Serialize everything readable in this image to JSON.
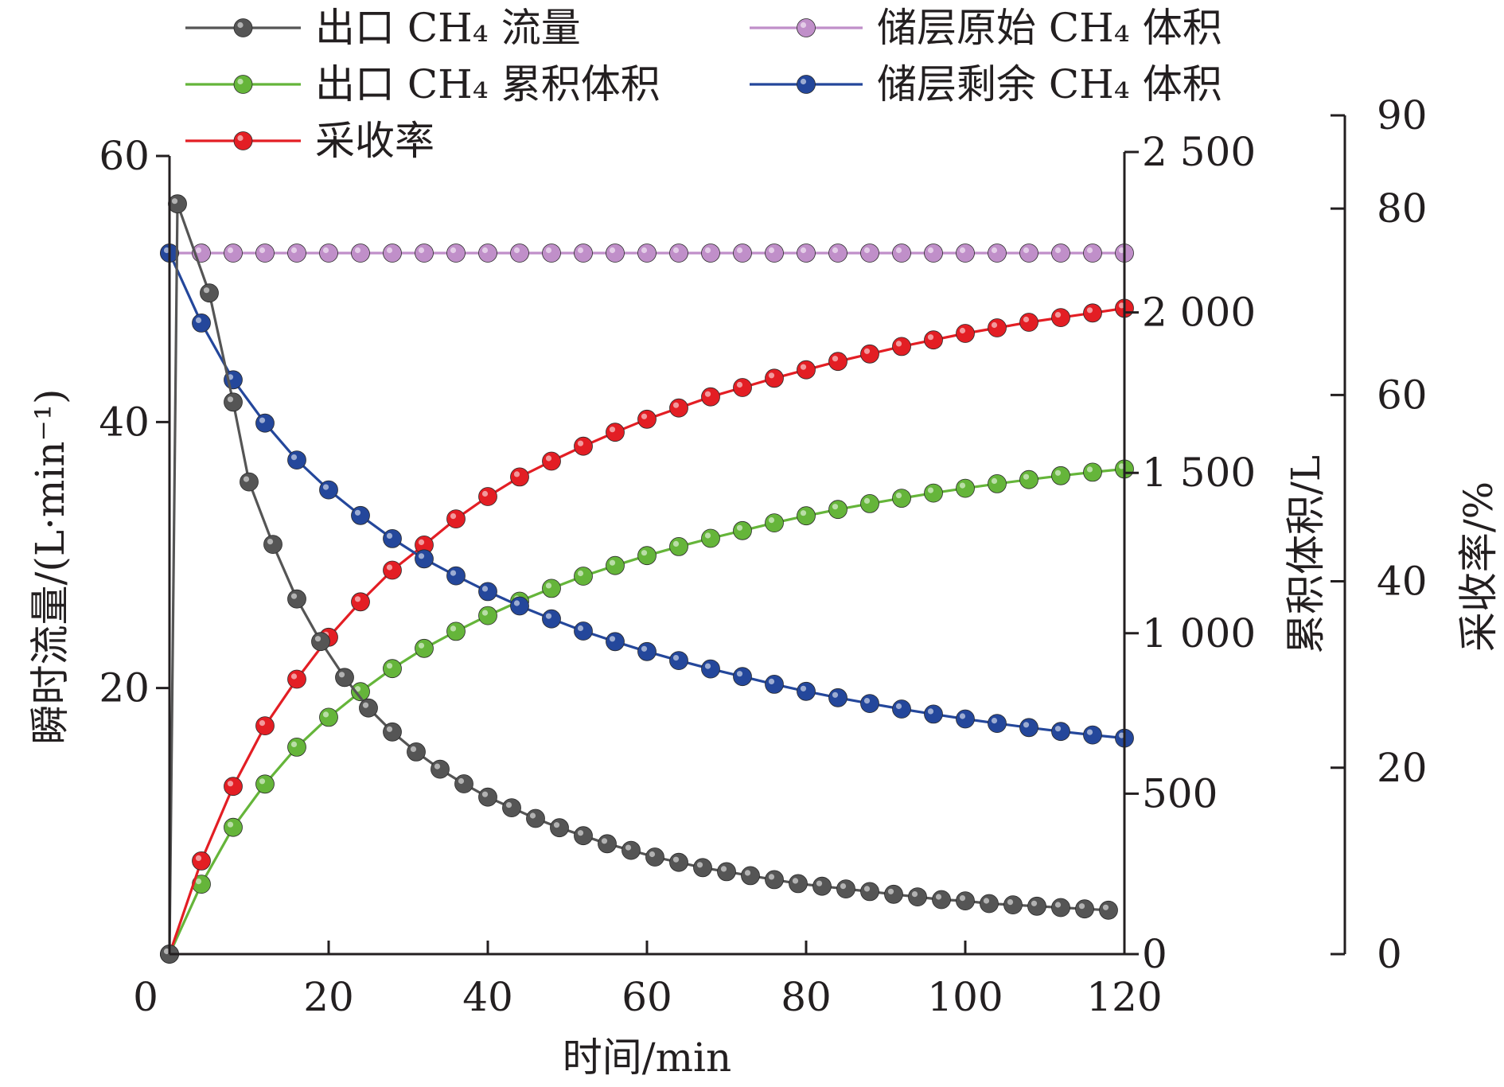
{
  "chart_data": {
    "type": "line",
    "xlabel": "时间/min",
    "x_ticks": [
      "0",
      "20",
      "40",
      "60",
      "80",
      "100",
      "120"
    ],
    "xlim": [
      0,
      120
    ],
    "axes": {
      "left": {
        "label": "瞬时流量/(L·min⁻¹)",
        "ylim": [
          0,
          60
        ],
        "ticks": [
          "20",
          "40",
          "60"
        ]
      },
      "right1": {
        "label": "累积体积/L",
        "ylim": [
          0,
          2500
        ],
        "ticks": [
          "0",
          "500",
          "1 000",
          "1 500",
          "2 000",
          "2 500"
        ]
      },
      "right2": {
        "label": "采收率/%",
        "ylim": [
          0,
          90
        ],
        "ticks": [
          "0",
          "20",
          "40",
          "60",
          "80",
          "90"
        ]
      }
    },
    "legend": {
      "placement": "top",
      "entries": [
        "出口 CH₄ 流量",
        "出口 CH₄ 累积体积",
        "采收率",
        "储层原始 CH₄ 体积",
        "储层剩余 CH₄ 体积"
      ]
    },
    "series": [
      {
        "name": "出口 CH₄ 流量",
        "axis": "left",
        "color": "#555555",
        "x": [
          0,
          1,
          5,
          8,
          10,
          13,
          16,
          19,
          22,
          25,
          28,
          31,
          34,
          37,
          40,
          43,
          46,
          49,
          52,
          55,
          58,
          61,
          64,
          67,
          70,
          73,
          76,
          79,
          82,
          85,
          88,
          91,
          94,
          97,
          100,
          103,
          106,
          109,
          112,
          115,
          118
        ],
        "values": [
          0,
          56.4,
          49.7,
          41.5,
          35.5,
          30.8,
          26.7,
          23.5,
          20.8,
          18.5,
          16.7,
          15.2,
          13.9,
          12.8,
          11.8,
          11.0,
          10.2,
          9.5,
          8.9,
          8.3,
          7.8,
          7.3,
          6.9,
          6.5,
          6.2,
          5.9,
          5.6,
          5.3,
          5.1,
          4.9,
          4.7,
          4.5,
          4.3,
          4.1,
          4.0,
          3.8,
          3.7,
          3.6,
          3.5,
          3.4,
          3.3
        ]
      },
      {
        "name": "出口 CH₄ 累积体积",
        "axis": "right1",
        "color": "#65b53a",
        "x": [
          0,
          4,
          8,
          12,
          16,
          20,
          24,
          28,
          32,
          36,
          40,
          44,
          48,
          52,
          56,
          60,
          64,
          68,
          72,
          76,
          80,
          84,
          88,
          92,
          96,
          100,
          104,
          108,
          112,
          116,
          120
        ],
        "values": [
          0,
          218,
          395,
          530,
          645,
          738,
          818,
          890,
          953,
          1006,
          1055,
          1100,
          1140,
          1178,
          1211,
          1242,
          1270,
          1296,
          1320,
          1344,
          1366,
          1386,
          1404,
          1421,
          1437,
          1452,
          1466,
          1479,
          1491,
          1502,
          1512
        ]
      },
      {
        "name": "采收率",
        "axis": "right2",
        "color": "#e31e24",
        "x": [
          0,
          4,
          8,
          12,
          16,
          20,
          24,
          28,
          32,
          36,
          40,
          44,
          48,
          52,
          56,
          60,
          64,
          68,
          72,
          76,
          80,
          84,
          88,
          92,
          96,
          100,
          104,
          108,
          112,
          116,
          120
        ],
        "values": [
          0,
          10,
          18,
          24.5,
          29.5,
          34,
          37.8,
          41.2,
          43.9,
          46.7,
          49.1,
          51.2,
          52.9,
          54.5,
          56,
          57.4,
          58.6,
          59.8,
          60.8,
          61.8,
          62.7,
          63.6,
          64.4,
          65.2,
          65.9,
          66.6,
          67.2,
          67.8,
          68.3,
          68.8,
          69.3
        ]
      },
      {
        "name": "储层原始 CH₄ 体积",
        "axis": "right1",
        "color": "#c08fc9",
        "x": [
          0,
          4,
          8,
          12,
          16,
          20,
          24,
          28,
          32,
          36,
          40,
          44,
          48,
          52,
          56,
          60,
          64,
          68,
          72,
          76,
          80,
          84,
          88,
          92,
          96,
          100,
          104,
          108,
          112,
          116,
          120
        ],
        "values": [
          2185,
          2185,
          2185,
          2185,
          2185,
          2185,
          2185,
          2185,
          2185,
          2185,
          2185,
          2185,
          2185,
          2185,
          2185,
          2185,
          2185,
          2185,
          2185,
          2185,
          2185,
          2185,
          2185,
          2185,
          2185,
          2185,
          2185,
          2185,
          2185,
          2185,
          2185
        ]
      },
      {
        "name": "储层剩余 CH₄ 体积",
        "axis": "right1",
        "color": "#24479b",
        "x": [
          0,
          4,
          8,
          12,
          16,
          20,
          24,
          28,
          32,
          36,
          40,
          44,
          48,
          52,
          56,
          60,
          64,
          68,
          72,
          76,
          80,
          84,
          88,
          92,
          96,
          100,
          104,
          108,
          112,
          116,
          120
        ],
        "values": [
          2185,
          1967,
          1790,
          1655,
          1540,
          1447,
          1367,
          1295,
          1232,
          1179,
          1130,
          1085,
          1045,
          1007,
          974,
          943,
          915,
          889,
          865,
          841,
          819,
          799,
          781,
          764,
          748,
          733,
          719,
          706,
          694,
          683,
          673
        ]
      }
    ]
  }
}
